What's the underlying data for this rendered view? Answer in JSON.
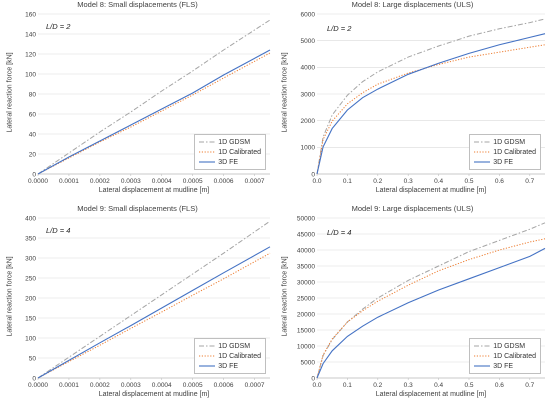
{
  "chart_data": [
    {
      "type": "line",
      "title": "Model 8: Small displacements (FLS)",
      "annotation": "L/D = 2",
      "xlabel": "Lateral displacement at mudline [m]",
      "ylabel": "Lateral reaction force [kN]",
      "xlim": [
        0,
        0.00075
      ],
      "ylim": [
        0,
        160
      ],
      "xticks": [
        "0.0000",
        "0.0001",
        "0.0002",
        "0.0003",
        "0.0004",
        "0.0005",
        "0.0006",
        "0.0007"
      ],
      "yticks": [
        "0",
        "20",
        "40",
        "60",
        "80",
        "100",
        "120",
        "140",
        "160"
      ],
      "grid": "horizontal",
      "legend": "bottom-right",
      "series": [
        {
          "name": "1D GDSM",
          "color": "#a5a5a5",
          "style": "dashdot",
          "x": [
            0,
            0.0001,
            0.0002,
            0.0003,
            0.0004,
            0.0005,
            0.0006,
            0.00075
          ],
          "y": [
            0,
            21,
            42,
            62,
            83,
            103,
            124,
            154
          ]
        },
        {
          "name": "1D Calibrated",
          "color": "#ed7d31",
          "style": "dotted",
          "x": [
            0,
            0.0001,
            0.0002,
            0.0003,
            0.0004,
            0.0005,
            0.0006,
            0.00075
          ],
          "y": [
            0,
            16,
            32,
            47,
            63,
            79,
            96,
            121
          ]
        },
        {
          "name": "3D FE",
          "color": "#4472c4",
          "style": "solid",
          "x": [
            0,
            0.0001,
            0.0002,
            0.0003,
            0.0004,
            0.0005,
            0.0006,
            0.00075
          ],
          "y": [
            0,
            17,
            33,
            49,
            65,
            81,
            99,
            124
          ]
        }
      ]
    },
    {
      "type": "line",
      "title": "Model 8: Large displacements (ULS)",
      "annotation": "L/D = 2",
      "xlabel": "Lateral displacement at mudline [m]",
      "ylabel": "Lateral reaction force [kN]",
      "xlim": [
        0,
        0.75
      ],
      "ylim": [
        0,
        6500
      ],
      "xticks": [
        "0.0",
        "0.1",
        "0.2",
        "0.3",
        "0.4",
        "0.5",
        "0.6",
        "0.7"
      ],
      "yticks": [
        "0",
        "1000",
        "2000",
        "3000",
        "4000",
        "5000",
        "6000"
      ],
      "grid": "horizontal",
      "legend": "bottom-right",
      "series": [
        {
          "name": "1D GDSM",
          "color": "#a5a5a5",
          "style": "dashdot",
          "x": [
            0,
            0.02,
            0.05,
            0.1,
            0.15,
            0.2,
            0.3,
            0.4,
            0.5,
            0.6,
            0.7,
            0.75
          ],
          "y": [
            0,
            1500,
            2400,
            3200,
            3750,
            4150,
            4750,
            5200,
            5600,
            5900,
            6150,
            6300
          ]
        },
        {
          "name": "1D Calibrated",
          "color": "#ed7d31",
          "style": "dotted",
          "x": [
            0,
            0.02,
            0.05,
            0.1,
            0.15,
            0.2,
            0.3,
            0.4,
            0.5,
            0.6,
            0.7,
            0.75
          ],
          "y": [
            0,
            1400,
            2150,
            2850,
            3300,
            3650,
            4100,
            4450,
            4750,
            4950,
            5150,
            5250
          ]
        },
        {
          "name": "3D FE",
          "color": "#4472c4",
          "style": "solid",
          "x": [
            0,
            0.02,
            0.05,
            0.1,
            0.15,
            0.2,
            0.3,
            0.4,
            0.5,
            0.6,
            0.7,
            0.75
          ],
          "y": [
            0,
            1100,
            1850,
            2600,
            3100,
            3450,
            4050,
            4500,
            4900,
            5250,
            5550,
            5700
          ]
        }
      ]
    },
    {
      "type": "line",
      "title": "Model 9: Small displacements (FLS)",
      "annotation": "L/D = 4",
      "xlabel": "Lateral displacement at mudline [m]",
      "ylabel": "Lateral reaction force [kN]",
      "xlim": [
        0,
        0.00075
      ],
      "ylim": [
        0,
        400
      ],
      "xticks": [
        "0.0000",
        "0.0001",
        "0.0002",
        "0.0003",
        "0.0004",
        "0.0005",
        "0.0006",
        "0.0007"
      ],
      "yticks": [
        "0",
        "50",
        "100",
        "150",
        "200",
        "250",
        "300",
        "350",
        "400"
      ],
      "grid": "horizontal",
      "legend": "bottom-right",
      "series": [
        {
          "name": "1D GDSM",
          "color": "#a5a5a5",
          "style": "dashdot",
          "x": [
            0,
            0.0001,
            0.0002,
            0.0003,
            0.0004,
            0.0005,
            0.0006,
            0.00075
          ],
          "y": [
            0,
            52,
            104,
            156,
            208,
            260,
            312,
            392
          ]
        },
        {
          "name": "1D Calibrated",
          "color": "#ed7d31",
          "style": "dotted",
          "x": [
            0,
            0.0001,
            0.0002,
            0.0003,
            0.0004,
            0.0005,
            0.0006,
            0.00075
          ],
          "y": [
            0,
            41,
            82,
            124,
            165,
            207,
            248,
            312
          ]
        },
        {
          "name": "3D FE",
          "color": "#4472c4",
          "style": "solid",
          "x": [
            0,
            0.0001,
            0.0002,
            0.0003,
            0.0004,
            0.0005,
            0.0006,
            0.00075
          ],
          "y": [
            0,
            44,
            88,
            131,
            175,
            219,
            263,
            328
          ]
        }
      ]
    },
    {
      "type": "line",
      "title": "Model 9: Large displacements (ULS)",
      "annotation": "L/D = 4",
      "xlabel": "Lateral displacement at mudline [m]",
      "ylabel": "Lateral reaction force [kN]",
      "xlim": [
        0,
        0.75
      ],
      "ylim": [
        0,
        50000
      ],
      "xticks": [
        "0.0",
        "0.1",
        "0.2",
        "0.3",
        "0.4",
        "0.5",
        "0.6",
        "0.7"
      ],
      "yticks": [
        "0",
        "5000",
        "10000",
        "15000",
        "20000",
        "25000",
        "30000",
        "35000",
        "40000",
        "45000",
        "50000"
      ],
      "grid": "horizontal",
      "legend": "bottom-right",
      "series": [
        {
          "name": "1D GDSM",
          "color": "#a5a5a5",
          "style": "dashdot",
          "x": [
            0,
            0.02,
            0.05,
            0.1,
            0.15,
            0.2,
            0.3,
            0.4,
            0.5,
            0.6,
            0.7,
            0.75
          ],
          "y": [
            0,
            7000,
            12000,
            17500,
            21500,
            25000,
            30500,
            35000,
            39500,
            43000,
            46500,
            48500
          ]
        },
        {
          "name": "1D Calibrated",
          "color": "#ed7d31",
          "style": "dotted",
          "x": [
            0,
            0.02,
            0.05,
            0.1,
            0.15,
            0.2,
            0.3,
            0.4,
            0.5,
            0.6,
            0.7,
            0.75
          ],
          "y": [
            0,
            7200,
            12200,
            17500,
            21000,
            24000,
            29000,
            33500,
            37000,
            40000,
            42500,
            43500
          ]
        },
        {
          "name": "3D FE",
          "color": "#4472c4",
          "style": "solid",
          "x": [
            0,
            0.02,
            0.05,
            0.1,
            0.15,
            0.2,
            0.3,
            0.4,
            0.5,
            0.6,
            0.7,
            0.75
          ],
          "y": [
            0,
            4500,
            8500,
            13000,
            16200,
            19000,
            23500,
            27500,
            31000,
            34500,
            38000,
            40500
          ]
        }
      ]
    }
  ]
}
